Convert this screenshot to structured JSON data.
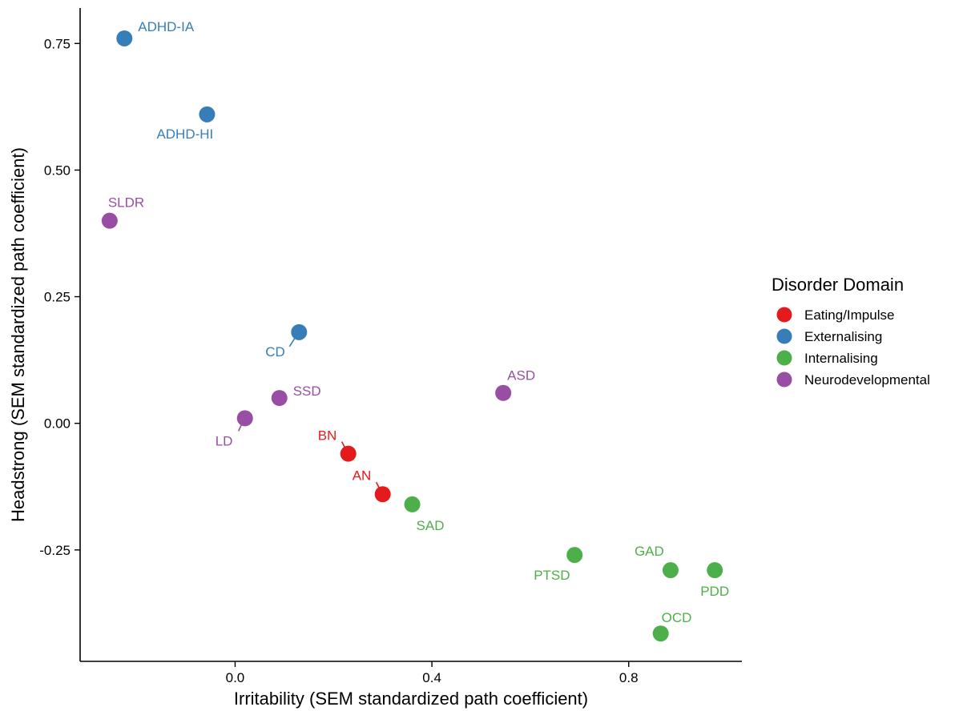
{
  "chart_data": {
    "type": "scatter",
    "title": "",
    "xlabel": "Irritability (SEM standardized path coefficient)",
    "ylabel": "Headstrong (SEM standardized path coefficient)",
    "xlim": [
      -0.315,
      1.03
    ],
    "ylim": [
      -0.47,
      0.82
    ],
    "x_ticks": [
      0.0,
      0.4,
      0.8
    ],
    "x_tick_labels": [
      "0.0",
      "0.4",
      "0.8"
    ],
    "y_ticks": [
      0.75,
      0.5,
      0.25,
      0.0,
      -0.25
    ],
    "y_tick_labels": [
      "0.75",
      "0.50",
      "0.25",
      "0.00",
      "-0.25"
    ],
    "grid": false,
    "legend": {
      "title": "Disorder Domain",
      "placement": "right",
      "entries": [
        {
          "name": "Eating/Impulse",
          "color": "#E41A1C"
        },
        {
          "name": "Externalising",
          "color": "#377EB8"
        },
        {
          "name": "Internalising",
          "color": "#4DAF4A"
        },
        {
          "name": "Neurodevelopmental",
          "color": "#984EA3"
        }
      ]
    },
    "points": [
      {
        "label": "ADHD-IA",
        "x": -0.225,
        "y": 0.76,
        "domain": "Externalising",
        "color": "#377EB8"
      },
      {
        "label": "ADHD-HI",
        "x": -0.057,
        "y": 0.61,
        "domain": "Externalising",
        "color": "#377EB8"
      },
      {
        "label": "SLDR",
        "x": -0.255,
        "y": 0.4,
        "domain": "Neurodevelopmental",
        "color": "#984EA3"
      },
      {
        "label": "CD",
        "x": 0.13,
        "y": 0.18,
        "domain": "Externalising",
        "color": "#377EB8"
      },
      {
        "label": "SSD",
        "x": 0.09,
        "y": 0.05,
        "domain": "Neurodevelopmental",
        "color": "#984EA3"
      },
      {
        "label": "LD",
        "x": 0.02,
        "y": 0.01,
        "domain": "Neurodevelopmental",
        "color": "#984EA3"
      },
      {
        "label": "ASD",
        "x": 0.545,
        "y": 0.06,
        "domain": "Neurodevelopmental",
        "color": "#984EA3"
      },
      {
        "label": "BN",
        "x": 0.23,
        "y": -0.06,
        "domain": "Eating/Impulse",
        "color": "#E41A1C"
      },
      {
        "label": "AN",
        "x": 0.3,
        "y": -0.14,
        "domain": "Eating/Impulse",
        "color": "#E41A1C"
      },
      {
        "label": "SAD",
        "x": 0.36,
        "y": -0.16,
        "domain": "Internalising",
        "color": "#4DAF4A"
      },
      {
        "label": "PTSD",
        "x": 0.69,
        "y": -0.26,
        "domain": "Internalising",
        "color": "#4DAF4A"
      },
      {
        "label": "GAD",
        "x": 0.885,
        "y": -0.29,
        "domain": "Internalising",
        "color": "#4DAF4A"
      },
      {
        "label": "PDD",
        "x": 0.975,
        "y": -0.29,
        "domain": "Internalising",
        "color": "#4DAF4A"
      },
      {
        "label": "OCD",
        "x": 0.865,
        "y": -0.415,
        "domain": "Internalising",
        "color": "#4DAF4A"
      }
    ]
  }
}
